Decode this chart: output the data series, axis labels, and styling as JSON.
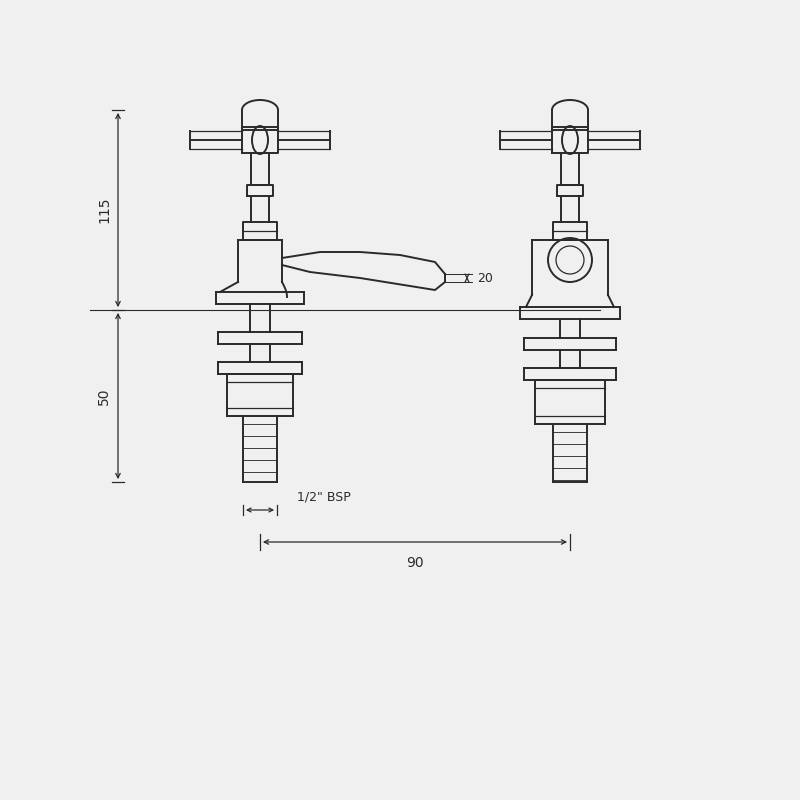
{
  "bg_color": "#f0f0f0",
  "line_color": "#2a2a2a",
  "dim_color": "#2a2a2a",
  "annotation_115": "115",
  "annotation_50": "50",
  "annotation_20": "20",
  "annotation_bsp": "1/2\" BSP",
  "annotation_90": "90",
  "lw_main": 1.4,
  "lw_detail": 0.9,
  "lw_dim": 0.9
}
